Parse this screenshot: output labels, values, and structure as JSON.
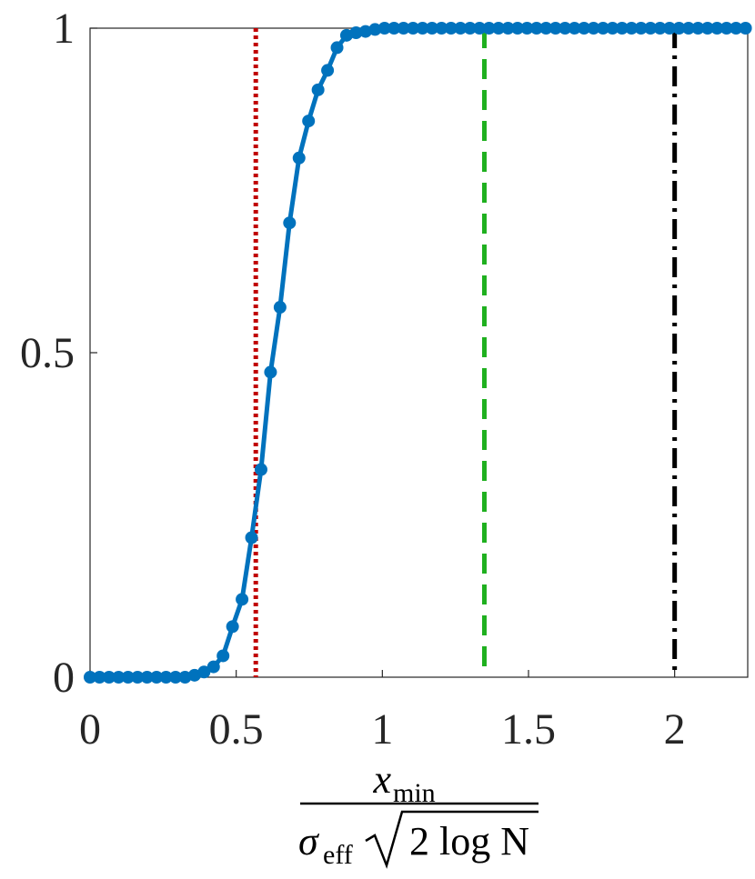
{
  "chart_data": {
    "type": "line",
    "x": [
      0,
      0.0325,
      0.065,
      0.0975,
      0.13,
      0.1625,
      0.195,
      0.2275,
      0.26,
      0.2925,
      0.325,
      0.3575,
      0.39,
      0.4225,
      0.455,
      0.4875,
      0.52,
      0.5525,
      0.585,
      0.6175,
      0.65,
      0.6825,
      0.715,
      0.7475,
      0.78,
      0.8125,
      0.845,
      0.8775,
      0.91,
      0.9425,
      0.975,
      1.0075,
      1.04,
      1.0725,
      1.105,
      1.1375,
      1.17,
      1.2025,
      1.235,
      1.2675,
      1.3,
      1.3325,
      1.365,
      1.3975,
      1.43,
      1.4625,
      1.495,
      1.5275,
      1.56,
      1.5925,
      1.625,
      1.6575,
      1.69,
      1.7225,
      1.755,
      1.7875,
      1.82,
      1.8525,
      1.885,
      1.9175,
      1.95,
      1.9825,
      2.015,
      2.0475,
      2.08,
      2.1125,
      2.145,
      2.1775,
      2.21,
      2.2425
    ],
    "series": [
      {
        "color": "#0072bd",
        "values": [
          0,
          0,
          0,
          0,
          0,
          0,
          0,
          0,
          0,
          0,
          0,
          0.003,
          0.008,
          0.016,
          0.033,
          0.078,
          0.12,
          0.215,
          0.32,
          0.47,
          0.57,
          0.7,
          0.8,
          0.857,
          0.905,
          0.935,
          0.97,
          0.989,
          0.993,
          0.995,
          0.998,
          1,
          1,
          1,
          1,
          1,
          1,
          1,
          1,
          1,
          1,
          1,
          1,
          1,
          1,
          1,
          1,
          1,
          1,
          1,
          1,
          1,
          1,
          1,
          1,
          1,
          1,
          1,
          1,
          1,
          1,
          1,
          1,
          1,
          1,
          1,
          1,
          1,
          1,
          1
        ]
      }
    ],
    "vlines": [
      {
        "x": 0.567,
        "color": "#c00000",
        "style": "dotted"
      },
      {
        "x": 1.349,
        "color": "#1fb01f",
        "style": "dashed"
      },
      {
        "x": 2,
        "color": "#000000",
        "style": "dashdot"
      }
    ],
    "xlim": [
      0,
      2.25
    ],
    "ylim": [
      0,
      1
    ],
    "xticks": [
      0,
      0.5,
      1,
      1.5,
      2
    ],
    "yticks": [
      0,
      0.5,
      1
    ],
    "xlabel": {
      "numerator": "x",
      "numerator_sub": "min",
      "denominator": "σ",
      "denominator_sub": "eff",
      "radicand": "2 log N"
    }
  }
}
